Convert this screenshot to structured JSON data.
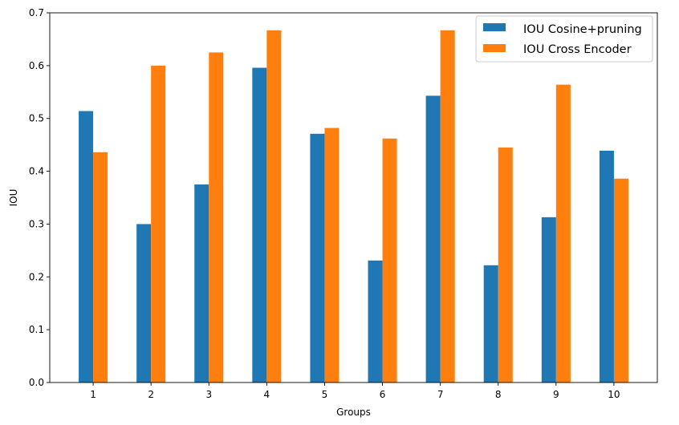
{
  "chart_data": {
    "type": "bar",
    "title": "",
    "xlabel": "Groups",
    "ylabel": "IOU",
    "categories": [
      "1",
      "2",
      "3",
      "4",
      "5",
      "6",
      "7",
      "8",
      "9",
      "10"
    ],
    "ylim": [
      0,
      0.7
    ],
    "yticks": [
      "0.0",
      "0.1",
      "0.2",
      "0.3",
      "0.4",
      "0.5",
      "0.6",
      "0.7"
    ],
    "grid": false,
    "legend_position": "top-right",
    "series": [
      {
        "name": "IOU Cosine+pruning",
        "color": "#1f77b4",
        "values": [
          0.514,
          0.3,
          0.375,
          0.596,
          0.471,
          0.231,
          0.543,
          0.222,
          0.313,
          0.439
        ]
      },
      {
        "name": "IOU Cross Encoder",
        "color": "#ff7f0e",
        "values": [
          0.436,
          0.6,
          0.625,
          0.667,
          0.482,
          0.462,
          0.667,
          0.445,
          0.564,
          0.386
        ]
      }
    ]
  }
}
